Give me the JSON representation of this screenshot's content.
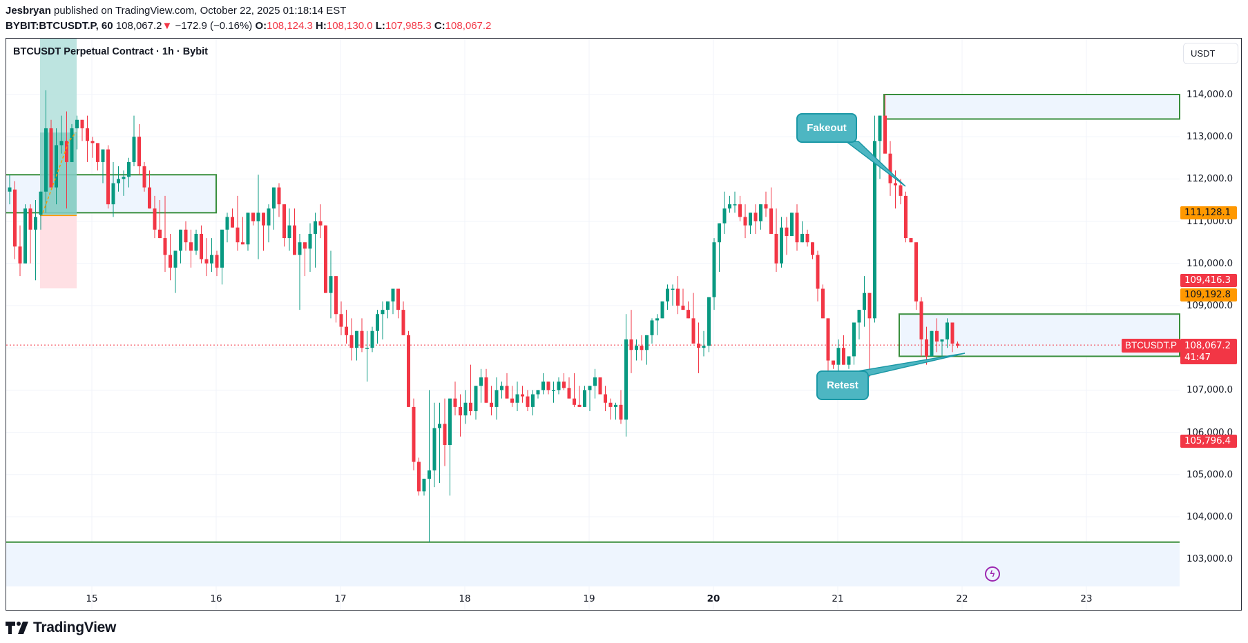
{
  "header": {
    "author": "Jesbryan",
    "published_text": "published on TradingView.com, October 22, 2025 01:18:14 EST",
    "symbol_interval": "BYBIT:BTCUSDT.P, 60",
    "last_price": "108,067.2",
    "change_arrow": "▼",
    "change": "−172.9 (−0.16%)",
    "o_label": "O:",
    "o_value": "108,124.3",
    "h_label": "H:",
    "h_value": "108,130.0",
    "l_label": "L:",
    "l_value": "107,985.3",
    "c_label": "C:",
    "c_value": "108,067.2"
  },
  "chart_title": "BTCUSDT Perpetual Contract · 1h · Bybit",
  "currency_button": "USDT",
  "price_tags": {
    "orange_top": "111,128.1",
    "red_mid": "109,416.3",
    "orange_mid": "109,192.8",
    "symbol_label": "BTCUSDT.P",
    "current_price": "108,067.2",
    "countdown": "41:47",
    "red_low": "105,796.4"
  },
  "annotations": {
    "fakeout_label": "Fakeout",
    "retest_label": "Retest"
  },
  "logo_text": "TradingView",
  "colors": {
    "up": "#089981",
    "down": "#f23645",
    "zone_border": "#388e3c",
    "zone_fill": "#eef5fe",
    "callout_fill": "#4db6c2",
    "callout_border": "#1b98a6",
    "long_profit": "#b2dfdb",
    "long_loss": "#ffdde1",
    "orange_tag": "#ff9800"
  },
  "chart_data": {
    "type": "candlestick",
    "title": "BTCUSDT Perpetual Contract · 1h · Bybit",
    "xlabel": "",
    "ylabel": "USDT",
    "ylim": [
      102400,
      115000
    ],
    "y_ticks": [
      "114,000.0",
      "113,000.0",
      "112,000.0",
      "111,000.0",
      "110,000.0",
      "109,000.0",
      "108,000.0",
      "107,000.0",
      "106,000.0",
      "105,000.0",
      "104,000.0",
      "103,000.0"
    ],
    "x_ticks": [
      "15",
      "16",
      "17",
      "18",
      "19",
      "20",
      "21",
      "22",
      "23"
    ],
    "x_tick_bold": "20",
    "interval": "1h",
    "grid": true,
    "current_price": 108067.2,
    "ohlc_note": "approximate hourly candles read from pixels, [open, high, low, close], starting ~Oct 14 14:00",
    "candles": [
      [
        111700,
        112100,
        111400,
        111800
      ],
      [
        111750,
        111950,
        110100,
        110400
      ],
      [
        110400,
        110900,
        109700,
        110000
      ],
      [
        110000,
        111400,
        110300,
        111300
      ],
      [
        111300,
        111400,
        110000,
        110800
      ],
      [
        110800,
        111500,
        109600,
        111100
      ],
      [
        111150,
        111600,
        110800,
        111700
      ],
      [
        111700,
        114100,
        111200,
        113200
      ],
      [
        113200,
        113400,
        112200,
        111800
      ],
      [
        111800,
        113200,
        111400,
        112800
      ],
      [
        112800,
        113500,
        112600,
        112900
      ],
      [
        112900,
        113600,
        111300,
        112400
      ],
      [
        112400,
        113300,
        112900,
        113200
      ],
      [
        113200,
        113500,
        112700,
        113400
      ],
      [
        113400,
        113300,
        112900,
        113200
      ],
      [
        113200,
        113500,
        112400,
        112900
      ],
      [
        112900,
        113000,
        112500,
        112850
      ],
      [
        112850,
        112700,
        112200,
        112400
      ],
      [
        112400,
        112700,
        111900,
        112700
      ],
      [
        112700,
        112800,
        111300,
        111400
      ],
      [
        111400,
        112400,
        111100,
        111900
      ],
      [
        111900,
        112300,
        111700,
        112000
      ],
      [
        112000,
        112200,
        111600,
        112050
      ],
      [
        112050,
        112500,
        111800,
        112400
      ],
      [
        112400,
        113500,
        112300,
        113000
      ],
      [
        113000,
        113300,
        112100,
        112300
      ],
      [
        112300,
        112400,
        111700,
        111800
      ],
      [
        111800,
        112200,
        111300,
        111300
      ],
      [
        111300,
        111600,
        110600,
        110800
      ],
      [
        110800,
        111500,
        110700,
        110600
      ],
      [
        110600,
        111600,
        109800,
        110200
      ],
      [
        110200,
        110700,
        109600,
        109900
      ],
      [
        109900,
        110200,
        109300,
        110300
      ],
      [
        110300,
        110800,
        110000,
        110800
      ],
      [
        110800,
        111000,
        110300,
        110500
      ],
      [
        110500,
        110800,
        109900,
        110300
      ],
      [
        110300,
        110800,
        110200,
        110700
      ],
      [
        110700,
        110900,
        110000,
        110100
      ],
      [
        110100,
        110600,
        109700,
        110000
      ],
      [
        110000,
        110600,
        109800,
        110200
      ],
      [
        110200,
        110300,
        109700,
        109900
      ],
      [
        109900,
        110600,
        109500,
        110800
      ],
      [
        110800,
        111200,
        110500,
        111100
      ],
      [
        111100,
        111300,
        110900,
        110850
      ],
      [
        110850,
        111600,
        110300,
        110500
      ],
      [
        110500,
        111100,
        110500,
        110450
      ],
      [
        110450,
        111000,
        110300,
        111200
      ],
      [
        111200,
        111200,
        110900,
        111000
      ],
      [
        111000,
        112100,
        110100,
        111200
      ],
      [
        111200,
        111200,
        110300,
        110900
      ],
      [
        110900,
        111400,
        110500,
        111300
      ],
      [
        111300,
        111800,
        110800,
        111800
      ],
      [
        111800,
        111900,
        111100,
        111400
      ],
      [
        111400,
        111400,
        110400,
        110600
      ],
      [
        110600,
        111300,
        110300,
        110900
      ],
      [
        110900,
        111300,
        110300,
        110200
      ],
      [
        110200,
        110700,
        108900,
        110500
      ],
      [
        110500,
        110400,
        109700,
        110350
      ],
      [
        110350,
        110950,
        109800,
        110700
      ],
      [
        110700,
        111200,
        109900,
        111000
      ],
      [
        111000,
        111400,
        110600,
        110900
      ],
      [
        110900,
        110700,
        109500,
        109300
      ],
      [
        109300,
        110300,
        108700,
        109700
      ],
      [
        109700,
        109700,
        108600,
        108800
      ],
      [
        108800,
        109100,
        108300,
        108500
      ],
      [
        108500,
        108900,
        108100,
        108300
      ],
      [
        108300,
        108700,
        107700,
        108000
      ],
      [
        108000,
        108400,
        107700,
        108400
      ],
      [
        108400,
        108700,
        107900,
        108000
      ],
      [
        108000,
        108400,
        107200,
        108000
      ],
      [
        108000,
        108500,
        107900,
        108400
      ],
      [
        108400,
        108900,
        108100,
        108800
      ],
      [
        108800,
        109100,
        108200,
        108900
      ],
      [
        108900,
        109100,
        108700,
        109100
      ],
      [
        109100,
        109400,
        108800,
        109400
      ],
      [
        109400,
        109300,
        108700,
        108900
      ],
      [
        108900,
        109100,
        108400,
        108300
      ],
      [
        108300,
        108400,
        106900,
        106600
      ],
      [
        106600,
        106800,
        105100,
        105300
      ],
      [
        105300,
        105400,
        104500,
        104600
      ],
      [
        104600,
        104800,
        104500,
        104900
      ],
      [
        104900,
        107000,
        103400,
        105100
      ],
      [
        105100,
        106700,
        104700,
        106100
      ],
      [
        106100,
        106700,
        104800,
        106200
      ],
      [
        106200,
        106800,
        105200,
        105700
      ],
      [
        105700,
        106300,
        104500,
        106800
      ],
      [
        106800,
        107200,
        106400,
        106600
      ],
      [
        106600,
        106900,
        105900,
        106400
      ],
      [
        106400,
        107000,
        106200,
        106700
      ],
      [
        106700,
        107600,
        106400,
        106500
      ],
      [
        106500,
        107000,
        106300,
        107100
      ],
      [
        107100,
        107500,
        106700,
        107300
      ],
      [
        107300,
        107500,
        106700,
        106700
      ],
      [
        106700,
        107100,
        106400,
        106600
      ],
      [
        106600,
        107300,
        106300,
        107000
      ],
      [
        107000,
        107200,
        106800,
        107100
      ],
      [
        107100,
        107400,
        106800,
        106800
      ],
      [
        106800,
        107100,
        106600,
        106700
      ],
      [
        106700,
        107200,
        106500,
        106900
      ],
      [
        106900,
        107100,
        106700,
        106850
      ],
      [
        106850,
        107000,
        106500,
        106600
      ],
      [
        106600,
        107000,
        106400,
        106900
      ],
      [
        106900,
        107000,
        106800,
        107000
      ],
      [
        107000,
        107400,
        106900,
        107200
      ],
      [
        107200,
        107200,
        106900,
        107000
      ],
      [
        107000,
        107200,
        106700,
        107000
      ],
      [
        107000,
        107300,
        106900,
        107200
      ],
      [
        107200,
        107400,
        107000,
        107050
      ],
      [
        107050,
        107300,
        106800,
        106800
      ],
      [
        106800,
        107400,
        106600,
        106650
      ],
      [
        106650,
        107100,
        106700,
        106600
      ],
      [
        106600,
        107100,
        106700,
        107000
      ],
      [
        107000,
        107000,
        106500,
        107100
      ],
      [
        107100,
        107500,
        106800,
        107300
      ],
      [
        107300,
        107300,
        106900,
        106900
      ],
      [
        106900,
        107100,
        106500,
        106700
      ],
      [
        106700,
        106800,
        106300,
        106600
      ],
      [
        106600,
        106700,
        106300,
        106650
      ],
      [
        106650,
        107000,
        106200,
        106300
      ],
      [
        106300,
        108800,
        105900,
        108200
      ],
      [
        108200,
        108900,
        107400,
        107950
      ],
      [
        107950,
        108200,
        107700,
        108050
      ],
      [
        108050,
        108300,
        107700,
        107950
      ],
      [
        107950,
        108200,
        107600,
        108300
      ],
      [
        108300,
        108700,
        108100,
        108650
      ],
      [
        108650,
        108800,
        108300,
        108700
      ],
      [
        108700,
        109000,
        108700,
        109100
      ],
      [
        109100,
        109500,
        108900,
        109400
      ],
      [
        109400,
        109500,
        109000,
        109400
      ],
      [
        109400,
        109700,
        108800,
        109000
      ],
      [
        109000,
        109400,
        108900,
        108900
      ],
      [
        108900,
        109100,
        108700,
        108700
      ],
      [
        108700,
        109300,
        108300,
        108100
      ],
      [
        108100,
        108600,
        107400,
        108000
      ],
      [
        108000,
        108400,
        107800,
        108050
      ],
      [
        108050,
        109000,
        107900,
        109200
      ],
      [
        109200,
        110600,
        108900,
        110500
      ],
      [
        110500,
        110700,
        109800,
        110950
      ],
      [
        110950,
        111700,
        110700,
        111300
      ],
      [
        111300,
        111600,
        111200,
        111400
      ],
      [
        111400,
        111700,
        111200,
        111400
      ],
      [
        111400,
        111600,
        111000,
        111100
      ],
      [
        111100,
        111400,
        110600,
        110900
      ],
      [
        110900,
        111200,
        110700,
        111200
      ],
      [
        111200,
        111400,
        110700,
        111000
      ],
      [
        111000,
        111400,
        110800,
        111400
      ],
      [
        111400,
        111700,
        111100,
        111300
      ],
      [
        111300,
        111800,
        110900,
        110700
      ],
      [
        110700,
        111300,
        109800,
        110000
      ],
      [
        110000,
        111100,
        109900,
        110850
      ],
      [
        110850,
        111100,
        110200,
        110650
      ],
      [
        110650,
        111200,
        110800,
        111200
      ],
      [
        111200,
        111400,
        110300,
        110500
      ],
      [
        110500,
        111000,
        110500,
        110700
      ],
      [
        110700,
        110800,
        110400,
        110500
      ],
      [
        110500,
        110500,
        110100,
        110200
      ],
      [
        110200,
        110300,
        109100,
        109400
      ],
      [
        109400,
        109500,
        108900,
        108700
      ],
      [
        108700,
        108500,
        107400,
        107700
      ],
      [
        107700,
        107700,
        107500,
        107600
      ],
      [
        107600,
        108200,
        107400,
        108000
      ],
      [
        108000,
        108300,
        107800,
        107600
      ],
      [
        107600,
        107800,
        107500,
        107800
      ],
      [
        107800,
        108500,
        107600,
        108600
      ],
      [
        108600,
        108900,
        108200,
        108900
      ],
      [
        108900,
        109700,
        108500,
        109300
      ],
      [
        109300,
        109300,
        107300,
        108700
      ],
      [
        108700,
        113500,
        108600,
        112900
      ],
      [
        112900,
        113500,
        112000,
        113500
      ],
      [
        113500,
        114000,
        112700,
        112600
      ],
      [
        112600,
        112900,
        111600,
        111900
      ],
      [
        111900,
        112200,
        111300,
        111850
      ],
      [
        111850,
        112000,
        111400,
        111600
      ],
      [
        111600,
        111700,
        110500,
        110600
      ],
      [
        110600,
        110500,
        110500,
        110500
      ],
      [
        110500,
        110500,
        108900,
        109100
      ],
      [
        109100,
        109200,
        107800,
        108200
      ],
      [
        108200,
        108500,
        107600,
        107800
      ],
      [
        107800,
        108300,
        107800,
        108400
      ],
      [
        108400,
        108700,
        107900,
        108150
      ],
      [
        108150,
        108200,
        107800,
        108200
      ],
      [
        108200,
        108700,
        108000,
        108600
      ],
      [
        108600,
        108600,
        107900,
        108100
      ],
      [
        108100,
        108150,
        108000,
        108050
      ]
    ],
    "zones": [
      {
        "label": "resistance_top",
        "y_top": 114000,
        "y_bottom": 113420
      },
      {
        "label": "retest_zone",
        "y_top": 108800,
        "y_bottom": 107800
      },
      {
        "label": "left_zone",
        "y_top": 112100,
        "y_bottom": 111200
      },
      {
        "label": "support_bottom",
        "y_top": 103400,
        "y_bottom": 102450
      }
    ],
    "long_position": {
      "entry": 111150,
      "target": 114000,
      "stop": 109480
    }
  }
}
